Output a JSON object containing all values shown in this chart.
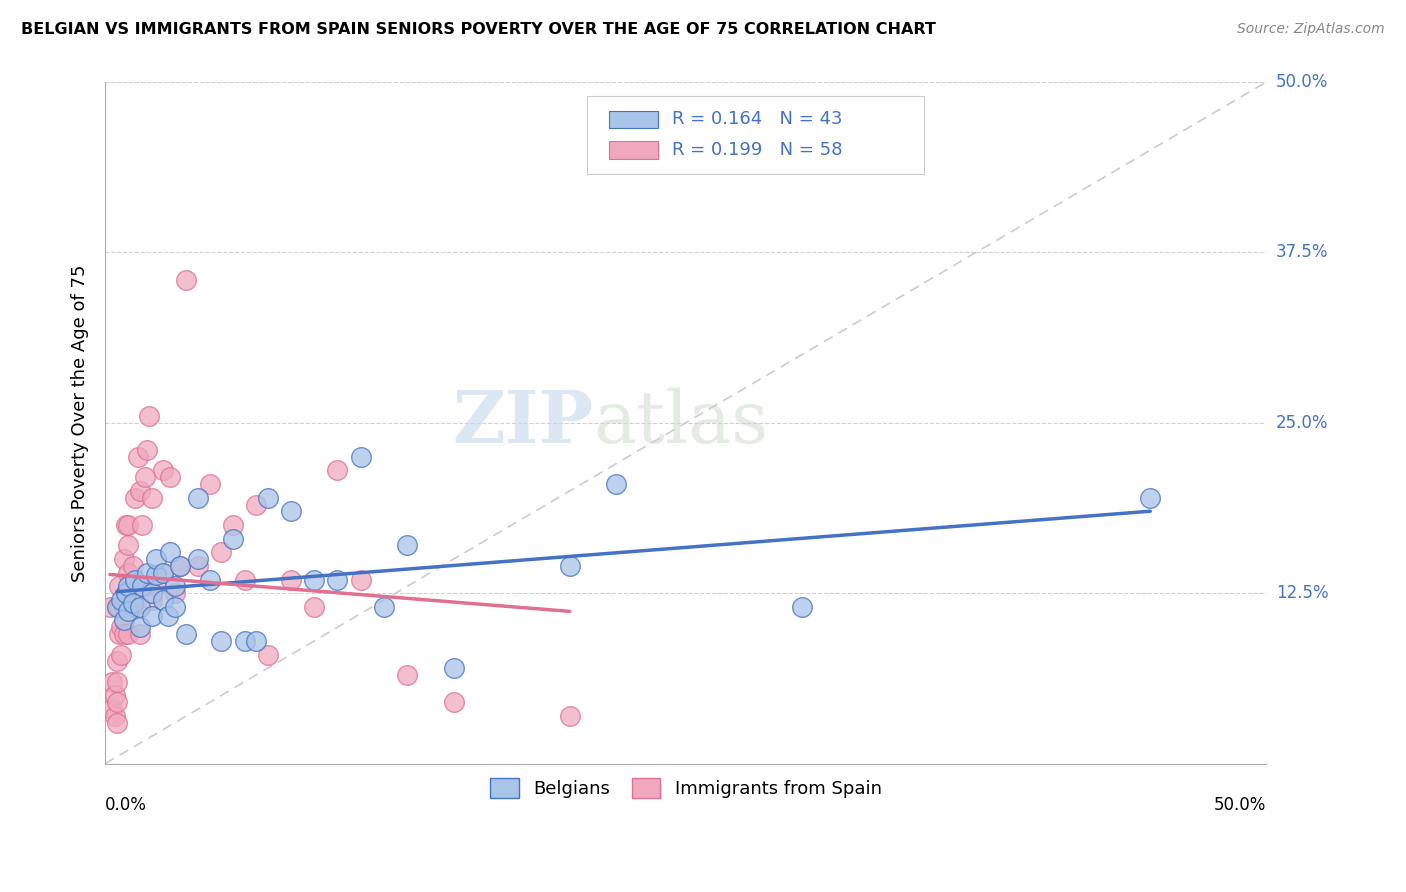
{
  "title": "BELGIAN VS IMMIGRANTS FROM SPAIN SENIORS POVERTY OVER THE AGE OF 75 CORRELATION CHART",
  "source": "Source: ZipAtlas.com",
  "ylabel": "Seniors Poverty Over the Age of 75",
  "xlim": [
    0,
    0.5
  ],
  "ylim": [
    0,
    0.5
  ],
  "yticks": [
    0.125,
    0.25,
    0.375,
    0.5
  ],
  "color_belgian": "#a8c4e8",
  "color_spain": "#f0a8be",
  "color_line_belgian": "#4472c4",
  "color_line_spain": "#e07090",
  "color_diag": "#d0c0d0",
  "background_color": "#ffffff",
  "watermark_zip": "ZIP",
  "watermark_atlas": "atlas",
  "belgians_x": [
    0.005,
    0.007,
    0.008,
    0.009,
    0.01,
    0.01,
    0.012,
    0.013,
    0.015,
    0.015,
    0.016,
    0.018,
    0.02,
    0.02,
    0.022,
    0.022,
    0.025,
    0.025,
    0.027,
    0.028,
    0.03,
    0.03,
    0.032,
    0.035,
    0.04,
    0.04,
    0.045,
    0.05,
    0.055,
    0.06,
    0.065,
    0.07,
    0.08,
    0.09,
    0.1,
    0.11,
    0.12,
    0.13,
    0.15,
    0.2,
    0.22,
    0.3,
    0.45
  ],
  "belgians_y": [
    0.115,
    0.12,
    0.105,
    0.125,
    0.112,
    0.13,
    0.118,
    0.135,
    0.1,
    0.115,
    0.13,
    0.14,
    0.108,
    0.125,
    0.138,
    0.15,
    0.12,
    0.14,
    0.108,
    0.155,
    0.115,
    0.13,
    0.145,
    0.095,
    0.195,
    0.15,
    0.135,
    0.09,
    0.165,
    0.09,
    0.09,
    0.195,
    0.185,
    0.135,
    0.135,
    0.225,
    0.115,
    0.16,
    0.07,
    0.145,
    0.205,
    0.115,
    0.195
  ],
  "spain_x": [
    0.002,
    0.003,
    0.003,
    0.004,
    0.004,
    0.005,
    0.005,
    0.005,
    0.005,
    0.006,
    0.006,
    0.006,
    0.007,
    0.007,
    0.008,
    0.008,
    0.008,
    0.009,
    0.009,
    0.01,
    0.01,
    0.01,
    0.01,
    0.01,
    0.012,
    0.012,
    0.013,
    0.014,
    0.015,
    0.015,
    0.015,
    0.016,
    0.017,
    0.018,
    0.019,
    0.02,
    0.02,
    0.022,
    0.025,
    0.025,
    0.028,
    0.03,
    0.032,
    0.035,
    0.04,
    0.045,
    0.05,
    0.055,
    0.06,
    0.065,
    0.07,
    0.08,
    0.09,
    0.1,
    0.11,
    0.13,
    0.15,
    0.2
  ],
  "spain_y": [
    0.115,
    0.04,
    0.06,
    0.035,
    0.05,
    0.03,
    0.045,
    0.06,
    0.075,
    0.095,
    0.115,
    0.13,
    0.08,
    0.1,
    0.095,
    0.115,
    0.15,
    0.125,
    0.175,
    0.095,
    0.115,
    0.14,
    0.16,
    0.175,
    0.115,
    0.145,
    0.195,
    0.225,
    0.095,
    0.13,
    0.2,
    0.175,
    0.21,
    0.23,
    0.255,
    0.12,
    0.195,
    0.13,
    0.14,
    0.215,
    0.21,
    0.125,
    0.145,
    0.355,
    0.145,
    0.205,
    0.155,
    0.175,
    0.135,
    0.19,
    0.08,
    0.135,
    0.115,
    0.215,
    0.135,
    0.065,
    0.045,
    0.035
  ]
}
